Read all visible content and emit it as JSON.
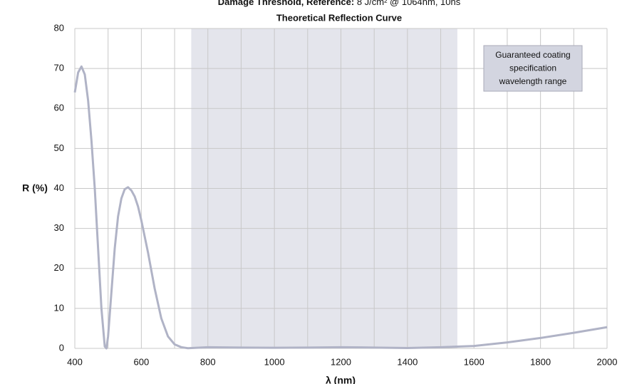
{
  "chart_data": {
    "type": "line",
    "header_label": "Damage Threshold, Reference:",
    "header_value": "8 J/cm² @ 1064nm, 10ns",
    "title": "Theoretical Reflection Curve",
    "x_label": "λ (nm)",
    "y_label": "R (%)",
    "annotation_lines": [
      "Guaranteed coating",
      "specification",
      "wavelength range"
    ],
    "highlight_range": [
      750,
      1550
    ],
    "highlight_color": "#e4e5ec",
    "x": [
      400,
      410,
      420,
      430,
      440,
      450,
      460,
      470,
      480,
      490,
      495,
      500,
      510,
      520,
      530,
      540,
      550,
      560,
      570,
      580,
      590,
      600,
      620,
      640,
      660,
      680,
      700,
      720,
      740,
      800,
      900,
      1000,
      1100,
      1200,
      1300,
      1400,
      1500,
      1600,
      1700,
      1800,
      1900,
      2000
    ],
    "series": [
      {
        "name": "R",
        "color": "#b0b3c6",
        "values": [
          64,
          69,
          70.5,
          68.5,
          62,
          52,
          40,
          25,
          10,
          0.5,
          0,
          3,
          14,
          25,
          33,
          37.5,
          39.8,
          40.3,
          39.5,
          38,
          35.5,
          32,
          24,
          15,
          7.5,
          3,
          1,
          0.3,
          0.05,
          0.3,
          0.2,
          0.15,
          0.2,
          0.3,
          0.2,
          0.1,
          0.3,
          0.6,
          1.5,
          2.6,
          3.9,
          5.3
        ]
      }
    ],
    "xlim": [
      400,
      2000
    ],
    "xticks": [
      400,
      600,
      800,
      1000,
      1200,
      1400,
      1600,
      1800,
      2000
    ],
    "x_minor_ticks": [
      500,
      700,
      900,
      1100,
      1300,
      1500,
      1700,
      1900
    ],
    "ylim": [
      0,
      80
    ],
    "yticks": [
      0,
      10,
      20,
      30,
      40,
      50,
      60,
      70,
      80
    ],
    "grid": true
  }
}
